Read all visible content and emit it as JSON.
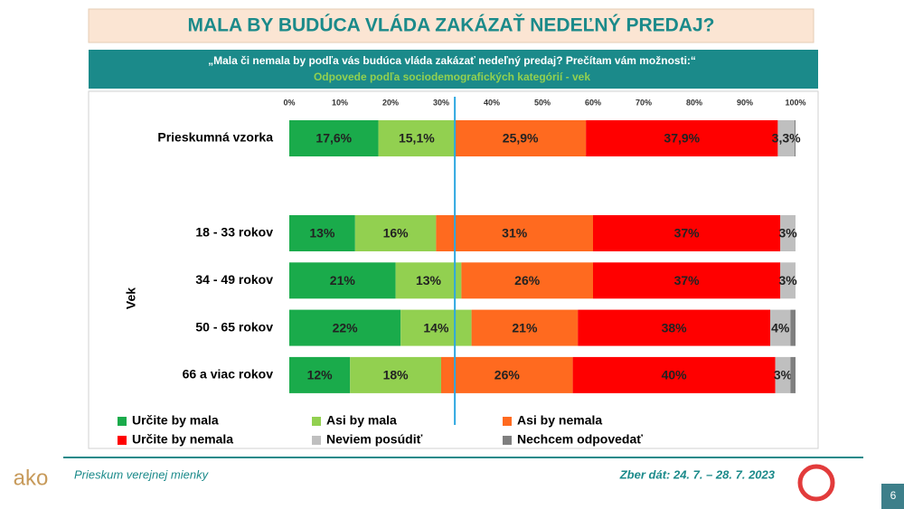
{
  "chart_data": {
    "type": "stacked-bar-horizontal",
    "title": "MALA BY BUDÚCA VLÁDA ZAKÁZAŤ NEDEĽNÝ PREDAJ?",
    "question": "„Mala či nemala by podľa vás budúca vláda zakázať nedeľný predaj? Prečítam vám možnosti:“",
    "subtitle": "Odpovede podľa sociodemografických kategórií - vek",
    "group_label": "Vek",
    "categories": [
      "Prieskumná vzorka",
      "18 - 33 rokov",
      "34 - 49 rokov",
      "50 - 65 rokov",
      "66 a viac rokov"
    ],
    "xlim": [
      0,
      100
    ],
    "xticks": [
      {
        "value": 0,
        "label": "0%"
      },
      {
        "value": 10,
        "label": "10%"
      },
      {
        "value": 20,
        "label": "20%"
      },
      {
        "value": 30,
        "label": "30%"
      },
      {
        "value": 40,
        "label": "40%"
      },
      {
        "value": 50,
        "label": "50%"
      },
      {
        "value": 60,
        "label": "60%"
      },
      {
        "value": 70,
        "label": "70%"
      },
      {
        "value": 80,
        "label": "80%"
      },
      {
        "value": 90,
        "label": "90%"
      },
      {
        "value": 100,
        "label": "100%"
      }
    ],
    "series": [
      {
        "name": "Určite by mala",
        "color": "#1aab4b",
        "values": [
          17.6,
          13,
          21,
          22,
          12
        ],
        "value_labels": [
          "17,6%",
          "13%",
          "21%",
          "22%",
          "12%"
        ]
      },
      {
        "name": "Asi by mala",
        "color": "#92d050",
        "values": [
          15.1,
          16,
          13,
          14,
          18
        ],
        "value_labels": [
          "15,1%",
          "16%",
          "13%",
          "14%",
          "18%"
        ]
      },
      {
        "name": "Asi by nemala",
        "color": "#ff6a1f",
        "values": [
          25.9,
          31,
          26,
          21,
          26
        ],
        "value_labels": [
          "25,9%",
          "31%",
          "26%",
          "21%",
          "26%"
        ]
      },
      {
        "name": "Určite by nemala",
        "color": "#ff0000",
        "values": [
          37.9,
          37,
          37,
          38,
          40
        ],
        "value_labels": [
          "37,9%",
          "37%",
          "37%",
          "38%",
          "40%"
        ]
      },
      {
        "name": "Neviem posúdiť",
        "color": "#bfbfbf",
        "values": [
          3.3,
          3,
          3,
          4,
          3
        ],
        "value_labels": [
          "3,3%",
          "3%",
          "3%",
          "4%",
          "3%"
        ]
      },
      {
        "name": "Nechcem odpovedať",
        "color": "#7f7f7f",
        "values": [
          0.2,
          0,
          0,
          1,
          1
        ]
      }
    ]
  },
  "footer": {
    "left": "Prieskum verejnej mienky",
    "right": "Zber dát: 24. 7. – 28. 7. 2023",
    "page": "6",
    "logo": "ako"
  }
}
